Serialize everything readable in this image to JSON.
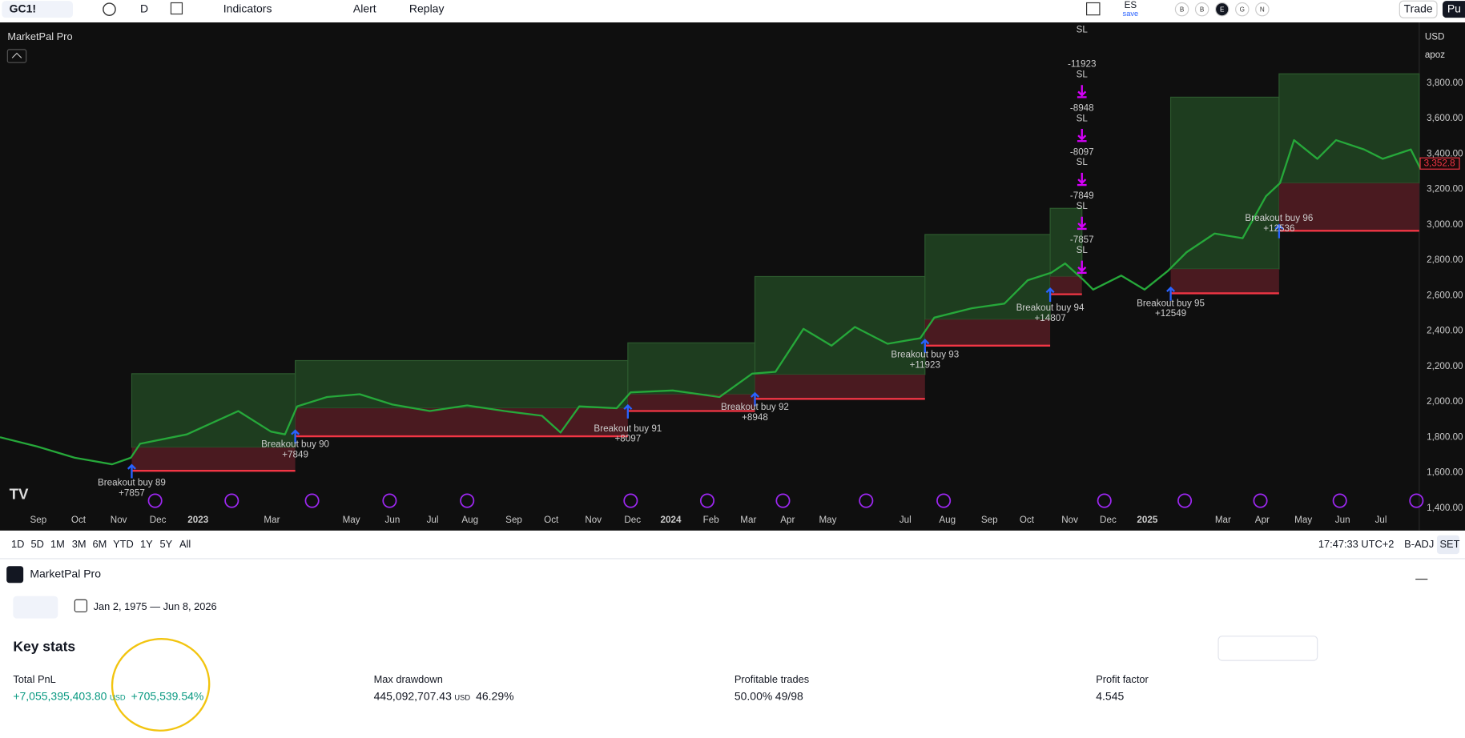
{
  "toolbar": {
    "symbol": "GC1!",
    "interval": "D",
    "buttons": [
      "Indicators",
      "Alert",
      "Replay"
    ],
    "layout_name": "ES",
    "layout_status": "save",
    "chips": [
      "B",
      "B",
      "E",
      "G",
      "N"
    ],
    "trade": "Trade",
    "publish": "Pu"
  },
  "chart": {
    "indicator": "MarketPal Pro",
    "currency": "USD",
    "scale_name": "apoz",
    "current_price": "3,352.8",
    "price_axis": [
      {
        "value": 3800,
        "label": "3,800.00"
      },
      {
        "value": 3600,
        "label": "3,600.00"
      },
      {
        "value": 3400,
        "label": "3,400.00"
      },
      {
        "value": 3200,
        "label": "3,200.00"
      },
      {
        "value": 3000,
        "label": "3,000.00"
      },
      {
        "value": 2800,
        "label": "2,800.00"
      },
      {
        "value": 2600,
        "label": "2,600.00"
      },
      {
        "value": 2400,
        "label": "2,400.00"
      },
      {
        "value": 2200,
        "label": "2,200.00"
      },
      {
        "value": 2000,
        "label": "2,000.00"
      },
      {
        "value": 1800,
        "label": "1,800.00"
      },
      {
        "value": 1600,
        "label": "1,600.00"
      },
      {
        "value": 1400,
        "label": "1,400.00"
      }
    ],
    "time_axis": [
      "Sep",
      "Oct",
      "Nov",
      "Dec",
      "2023",
      "Mar",
      "May",
      "Jun",
      "Jul",
      "Aug",
      "Sep",
      "Oct",
      "Nov",
      "Dec",
      "2024",
      "Feb",
      "Mar",
      "Apr",
      "May",
      "Jul",
      "Aug",
      "Sep",
      "Oct",
      "Nov",
      "Dec",
      "2025",
      "Mar",
      "Apr",
      "May",
      "Jun",
      "Jul"
    ],
    "trades": [
      {
        "label": "Breakout buy 89",
        "result": "+7857"
      },
      {
        "label": "Breakout buy 90",
        "result": "+7849"
      },
      {
        "label": "Breakout buy 91",
        "result": "+8097"
      },
      {
        "label": "Breakout buy 92",
        "result": "+8948"
      },
      {
        "label": "Breakout buy 93",
        "result": "+11923"
      },
      {
        "label": "Breakout buy 94",
        "result": "+14807"
      },
      {
        "label": "Breakout buy 95",
        "result": "+12549"
      },
      {
        "label": "Breakout buy 96",
        "result": "+12536"
      }
    ],
    "stops": [
      {
        "result": "-11923",
        "tag": "SL"
      },
      {
        "result": "-8948",
        "tag": "SL"
      },
      {
        "result": "-8097",
        "tag": "SL"
      },
      {
        "result": "-7849",
        "tag": "SL"
      },
      {
        "result": "-7857",
        "tag": "SL"
      }
    ],
    "top_stop_tag": "SL"
  },
  "timeframes": [
    "1D",
    "5D",
    "1M",
    "3M",
    "6M",
    "YTD",
    "1Y",
    "5Y",
    "All"
  ],
  "status": {
    "clock": "17:47:33 UTC+2",
    "adjust": "B-ADJ",
    "session": "SET"
  },
  "panel": {
    "strategy": "MarketPal Pro",
    "date_range": "Jan 2, 1975 — Jun 8, 2026",
    "heading": "Key stats",
    "stats": [
      {
        "label": "Total PnL",
        "value": "+7,055,395,403.80",
        "unit": "USD",
        "extra": "+705,539.54%"
      },
      {
        "label": "Max drawdown",
        "value": "445,092,707.43",
        "unit": "USD",
        "extra": "46.29%"
      },
      {
        "label": "Profitable trades",
        "value": "50.00%",
        "extra": "49/98"
      },
      {
        "label": "Profit factor",
        "value": "4.545"
      }
    ]
  }
}
